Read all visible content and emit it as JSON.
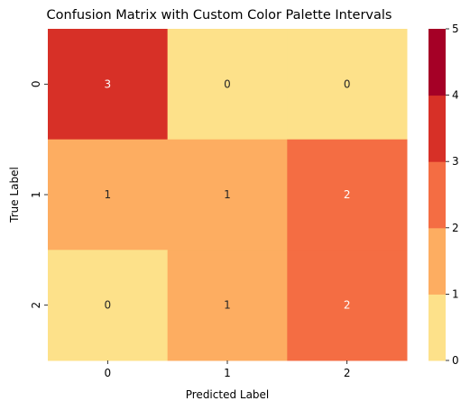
{
  "chart_data": {
    "type": "heatmap",
    "title": "Confusion Matrix with Custom Color Palette Intervals",
    "xlabel": "Predicted Label",
    "ylabel": "True Label",
    "x_categories": [
      "0",
      "1",
      "2"
    ],
    "y_categories": [
      "0",
      "1",
      "2"
    ],
    "values": [
      [
        3,
        0,
        0
      ],
      [
        1,
        1,
        2
      ],
      [
        0,
        1,
        2
      ]
    ],
    "colorbar": {
      "range": [
        0,
        5
      ],
      "ticks": [
        "0",
        "1",
        "2",
        "3",
        "4",
        "5"
      ],
      "colors": [
        "#fde18a",
        "#fdad61",
        "#f46d43",
        "#d73027",
        "#a50026"
      ]
    },
    "annotation_colors": {
      "dark": "#262626",
      "light": "#ffffff"
    }
  }
}
